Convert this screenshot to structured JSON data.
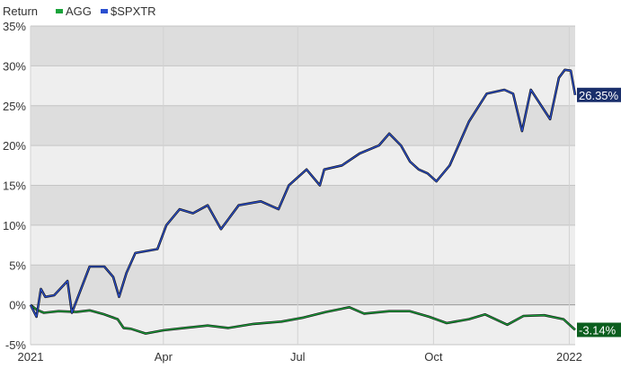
{
  "chart_data": {
    "type": "line",
    "ylabel": "Return",
    "ylim": [
      -5,
      35
    ],
    "yticks": [
      "35%",
      "30%",
      "25%",
      "20%",
      "15%",
      "10%",
      "5%",
      "0%",
      "-5%"
    ],
    "ytick_values": [
      35,
      30,
      25,
      20,
      15,
      10,
      5,
      0,
      -5
    ],
    "xlim": [
      "2021-01-01",
      "2022-01-05"
    ],
    "xticks": [
      {
        "label": "2021",
        "date": "2021-01-01"
      },
      {
        "label": "Apr",
        "date": "2021-04-01"
      },
      {
        "label": "Jul",
        "date": "2021-07-01"
      },
      {
        "label": "Oct",
        "date": "2021-10-01"
      },
      {
        "label": "2022",
        "date": "2022-01-01"
      }
    ],
    "grid": true,
    "legend": "top-left",
    "series": [
      {
        "name": "AGG",
        "color": "#1aa33a",
        "end_label": "-3.14%",
        "label_bg": "#0b5e1e",
        "points": [
          [
            "2021-01-01",
            0
          ],
          [
            "2021-01-05",
            -0.6
          ],
          [
            "2021-01-10",
            -1.0
          ],
          [
            "2021-01-20",
            -0.8
          ],
          [
            "2021-02-01",
            -0.9
          ],
          [
            "2021-02-10",
            -0.7
          ],
          [
            "2021-02-20",
            -1.2
          ],
          [
            "2021-03-01",
            -1.8
          ],
          [
            "2021-03-05",
            -2.9
          ],
          [
            "2021-03-10",
            -3.0
          ],
          [
            "2021-03-20",
            -3.6
          ],
          [
            "2021-04-01",
            -3.2
          ],
          [
            "2021-04-15",
            -2.9
          ],
          [
            "2021-05-01",
            -2.6
          ],
          [
            "2021-05-15",
            -2.9
          ],
          [
            "2021-06-01",
            -2.4
          ],
          [
            "2021-06-20",
            -2.1
          ],
          [
            "2021-07-05",
            -1.6
          ],
          [
            "2021-07-20",
            -0.9
          ],
          [
            "2021-08-05",
            -0.3
          ],
          [
            "2021-08-15",
            -1.1
          ],
          [
            "2021-09-01",
            -0.8
          ],
          [
            "2021-09-15",
            -0.8
          ],
          [
            "2021-09-28",
            -1.5
          ],
          [
            "2021-10-10",
            -2.3
          ],
          [
            "2021-10-25",
            -1.8
          ],
          [
            "2021-11-05",
            -1.2
          ],
          [
            "2021-11-20",
            -2.5
          ],
          [
            "2021-12-01",
            -1.4
          ],
          [
            "2021-12-15",
            -1.3
          ],
          [
            "2021-12-28",
            -1.8
          ],
          [
            "2022-01-05",
            -3.14
          ]
        ]
      },
      {
        "name": "$SPXTR",
        "color": "#2a4fd0",
        "end_label": "26.35%",
        "label_bg": "#1a2f6b",
        "points": [
          [
            "2021-01-01",
            0
          ],
          [
            "2021-01-05",
            -1.5
          ],
          [
            "2021-01-08",
            2.0
          ],
          [
            "2021-01-11",
            1.0
          ],
          [
            "2021-01-17",
            1.2
          ],
          [
            "2021-01-26",
            3.0
          ],
          [
            "2021-01-29",
            -1.0
          ],
          [
            "2021-02-10",
            4.8
          ],
          [
            "2021-02-20",
            4.8
          ],
          [
            "2021-02-26",
            3.5
          ],
          [
            "2021-03-02",
            1.0
          ],
          [
            "2021-03-07",
            4.0
          ],
          [
            "2021-03-13",
            6.5
          ],
          [
            "2021-03-28",
            7.0
          ],
          [
            "2021-04-03",
            10.0
          ],
          [
            "2021-04-12",
            12.0
          ],
          [
            "2021-04-21",
            11.5
          ],
          [
            "2021-05-01",
            12.5
          ],
          [
            "2021-05-10",
            9.5
          ],
          [
            "2021-05-22",
            12.5
          ],
          [
            "2021-06-06",
            13.0
          ],
          [
            "2021-06-18",
            12.0
          ],
          [
            "2021-06-25",
            15.0
          ],
          [
            "2021-07-07",
            17.0
          ],
          [
            "2021-07-16",
            15.0
          ],
          [
            "2021-07-19",
            17.0
          ],
          [
            "2021-07-31",
            17.5
          ],
          [
            "2021-08-12",
            19.0
          ],
          [
            "2021-08-25",
            20.0
          ],
          [
            "2021-09-01",
            21.5
          ],
          [
            "2021-09-09",
            20.0
          ],
          [
            "2021-09-15",
            18.0
          ],
          [
            "2021-09-21",
            17.0
          ],
          [
            "2021-09-27",
            16.5
          ],
          [
            "2021-10-03",
            15.5
          ],
          [
            "2021-10-12",
            17.5
          ],
          [
            "2021-10-25",
            23.0
          ],
          [
            "2021-11-06",
            26.5
          ],
          [
            "2021-11-18",
            27.0
          ],
          [
            "2021-11-24",
            26.5
          ],
          [
            "2021-11-30",
            21.8
          ],
          [
            "2021-12-06",
            27.0
          ],
          [
            "2021-12-19",
            23.3
          ],
          [
            "2021-12-25",
            28.5
          ],
          [
            "2021-12-29",
            29.5
          ],
          [
            "2022-01-02",
            29.4
          ],
          [
            "2022-01-05",
            26.35
          ]
        ]
      }
    ]
  }
}
